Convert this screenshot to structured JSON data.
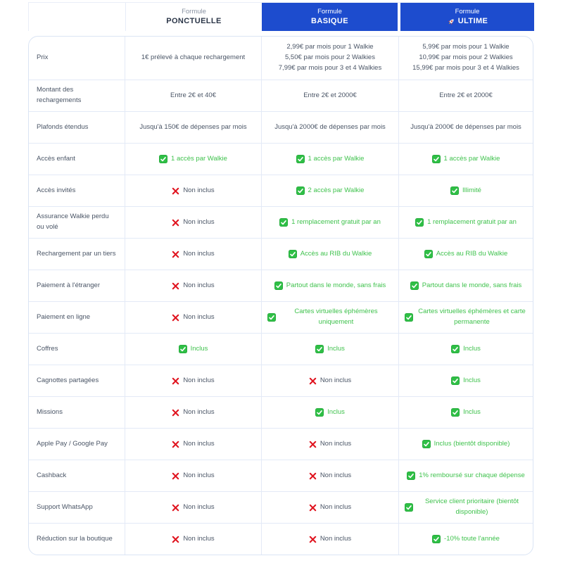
{
  "colors": {
    "header_blue": "#1d4cce",
    "check_green": "#2fbf46",
    "green_text": "#3fc24d",
    "cross_red": "#e01520",
    "border": "#e3eaf7",
    "body_text": "#4a5566"
  },
  "header": {
    "plans": [
      {
        "top": "Formule",
        "name": "PONCTUELLE",
        "style": "light",
        "icon": ""
      },
      {
        "top": "Formule",
        "name": "BASIQUE",
        "style": "blue",
        "icon": ""
      },
      {
        "top": "Formule",
        "name": "ULTIME",
        "style": "blue",
        "icon": "rocket-icon"
      }
    ]
  },
  "rows": [
    {
      "feature": "Prix",
      "cells": [
        {
          "type": "text",
          "lines": [
            "1€ prélevé à chaque rechargement"
          ]
        },
        {
          "type": "text",
          "lines": [
            "2,99€ par mois pour 1 Walkie",
            "5,50€ par mois pour 2 Walkies",
            "7,99€ par mois pour 3 et 4 Walkies"
          ]
        },
        {
          "type": "text",
          "lines": [
            "5,99€ par mois pour 1 Walkie",
            "10,99€ par mois pour 2 Walkies",
            "15,99€ par mois pour 3 et 4 Walkies"
          ]
        }
      ]
    },
    {
      "feature": "Montant des rechargements",
      "cells": [
        {
          "type": "text",
          "lines": [
            "Entre 2€ et 40€"
          ]
        },
        {
          "type": "text",
          "lines": [
            "Entre 2€ et 2000€"
          ]
        },
        {
          "type": "text",
          "lines": [
            "Entre 2€ et 2000€"
          ]
        }
      ]
    },
    {
      "feature": "Plafonds étendus",
      "cells": [
        {
          "type": "text",
          "lines": [
            "Jusqu'à 150€ de dépenses par mois"
          ]
        },
        {
          "type": "text",
          "lines": [
            "Jusqu'à 2000€ de dépenses par mois"
          ]
        },
        {
          "type": "text",
          "lines": [
            "Jusqu'à 2000€ de dépenses par mois"
          ]
        }
      ]
    },
    {
      "feature": "Accès enfant",
      "cells": [
        {
          "type": "check",
          "lines": [
            "1 accès par Walkie"
          ]
        },
        {
          "type": "check",
          "lines": [
            "1 accès par Walkie"
          ]
        },
        {
          "type": "check",
          "lines": [
            "1 accès par Walkie"
          ]
        }
      ]
    },
    {
      "feature": "Accès invités",
      "cells": [
        {
          "type": "cross",
          "lines": [
            "Non inclus"
          ]
        },
        {
          "type": "check",
          "lines": [
            "2 accès par Walkie"
          ]
        },
        {
          "type": "check",
          "lines": [
            "Illimité"
          ]
        }
      ]
    },
    {
      "feature": "Assurance Walkie perdu ou volé",
      "cells": [
        {
          "type": "cross",
          "lines": [
            "Non inclus"
          ]
        },
        {
          "type": "check",
          "lines": [
            "1 remplacement gratuit par an"
          ]
        },
        {
          "type": "check",
          "lines": [
            "1 remplacement gratuit par an"
          ]
        }
      ]
    },
    {
      "feature": "Rechargement par un tiers",
      "cells": [
        {
          "type": "cross",
          "lines": [
            "Non inclus"
          ]
        },
        {
          "type": "check",
          "lines": [
            "Accès au RIB du Walkie"
          ]
        },
        {
          "type": "check",
          "lines": [
            "Accès au RIB du Walkie"
          ]
        }
      ]
    },
    {
      "feature": "Paiement à l'étranger",
      "cells": [
        {
          "type": "cross",
          "lines": [
            "Non inclus"
          ]
        },
        {
          "type": "check",
          "lines": [
            "Partout dans le monde, sans frais"
          ]
        },
        {
          "type": "check",
          "lines": [
            "Partout dans le monde, sans frais"
          ]
        }
      ]
    },
    {
      "feature": "Paiement en ligne",
      "cells": [
        {
          "type": "cross",
          "lines": [
            "Non inclus"
          ]
        },
        {
          "type": "check",
          "lines": [
            "Cartes virtuelles éphémères uniquement"
          ]
        },
        {
          "type": "check",
          "lines": [
            "Cartes virtuelles éphémères et carte permanente"
          ]
        }
      ]
    },
    {
      "feature": "Coffres",
      "cells": [
        {
          "type": "check",
          "lines": [
            "Inclus"
          ]
        },
        {
          "type": "check",
          "lines": [
            "Inclus"
          ]
        },
        {
          "type": "check",
          "lines": [
            "Inclus"
          ]
        }
      ]
    },
    {
      "feature": "Cagnottes partagées",
      "cells": [
        {
          "type": "cross",
          "lines": [
            "Non inclus"
          ]
        },
        {
          "type": "cross",
          "lines": [
            "Non inclus"
          ]
        },
        {
          "type": "check",
          "lines": [
            "Inclus"
          ]
        }
      ]
    },
    {
      "feature": "Missions",
      "cells": [
        {
          "type": "cross",
          "lines": [
            "Non inclus"
          ]
        },
        {
          "type": "check",
          "lines": [
            "Inclus"
          ]
        },
        {
          "type": "check",
          "lines": [
            "Inclus"
          ]
        }
      ]
    },
    {
      "feature": "Apple Pay / Google Pay",
      "cells": [
        {
          "type": "cross",
          "lines": [
            "Non inclus"
          ]
        },
        {
          "type": "cross",
          "lines": [
            "Non inclus"
          ]
        },
        {
          "type": "check",
          "lines": [
            "Inclus (bientôt disponible)"
          ]
        }
      ]
    },
    {
      "feature": "Cashback",
      "cells": [
        {
          "type": "cross",
          "lines": [
            "Non inclus"
          ]
        },
        {
          "type": "cross",
          "lines": [
            "Non inclus"
          ]
        },
        {
          "type": "check",
          "lines": [
            "1% remboursé sur chaque dépense"
          ]
        }
      ]
    },
    {
      "feature": "Support WhatsApp",
      "cells": [
        {
          "type": "cross",
          "lines": [
            "Non inclus"
          ]
        },
        {
          "type": "cross",
          "lines": [
            "Non inclus"
          ]
        },
        {
          "type": "check",
          "lines": [
            "Service client prioritaire (bientôt disponible)"
          ]
        }
      ]
    },
    {
      "feature": "Réduction sur la boutique",
      "cells": [
        {
          "type": "cross",
          "lines": [
            "Non inclus"
          ]
        },
        {
          "type": "cross",
          "lines": [
            "Non inclus"
          ]
        },
        {
          "type": "check",
          "lines": [
            "-10% toute l'année"
          ]
        }
      ]
    }
  ]
}
